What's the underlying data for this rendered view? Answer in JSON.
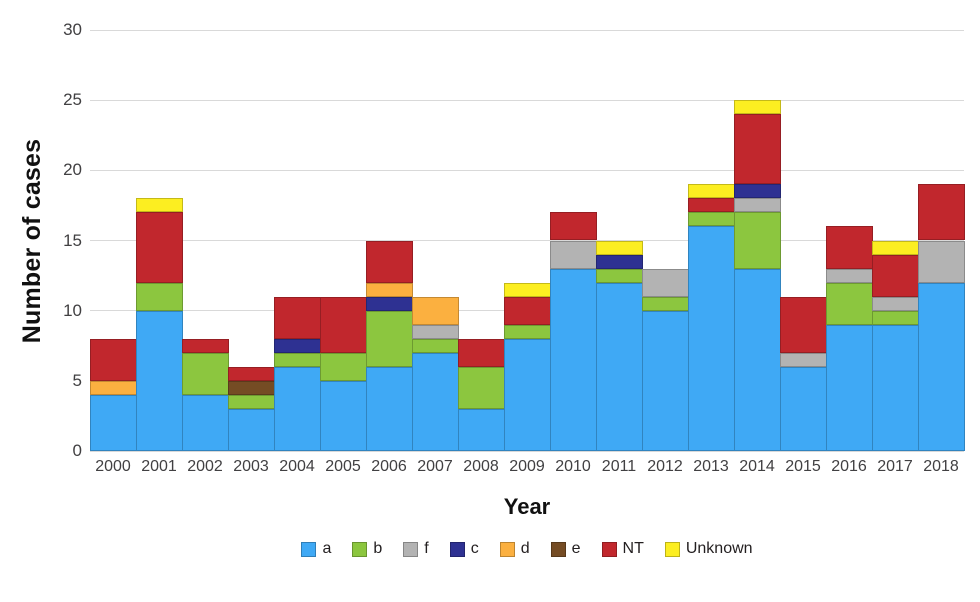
{
  "chart_data": {
    "type": "bar",
    "stacked": true,
    "title": "",
    "xlabel": "Year",
    "ylabel": "Number of cases",
    "categories": [
      "2000",
      "2001",
      "2002",
      "2003",
      "2004",
      "2005",
      "2006",
      "2007",
      "2008",
      "2009",
      "2010",
      "2011",
      "2012",
      "2013",
      "2014",
      "2015",
      "2016",
      "2017",
      "2018"
    ],
    "yticks": [
      0,
      5,
      10,
      15,
      20,
      25,
      30
    ],
    "ylim": [
      0,
      30
    ],
    "grid": true,
    "legend_position": "bottom",
    "series": [
      {
        "name": "a",
        "color": "#3FA9F5",
        "values": [
          4,
          10,
          4,
          3,
          6,
          5,
          6,
          7,
          3,
          8,
          13,
          12,
          10,
          16,
          13,
          6,
          9,
          9,
          12
        ]
      },
      {
        "name": "b",
        "color": "#8CC63F",
        "values": [
          0,
          2,
          3,
          1,
          1,
          2,
          4,
          1,
          3,
          1,
          0,
          1,
          1,
          1,
          4,
          0,
          3,
          1,
          0
        ]
      },
      {
        "name": "f",
        "color": "#B3B3B3",
        "values": [
          0,
          0,
          0,
          0,
          0,
          0,
          0,
          1,
          0,
          0,
          2,
          0,
          2,
          0,
          1,
          1,
          1,
          1,
          3
        ]
      },
      {
        "name": "c",
        "color": "#2E3192",
        "values": [
          0,
          0,
          0,
          0,
          1,
          0,
          1,
          0,
          0,
          0,
          0,
          1,
          0,
          0,
          1,
          0,
          0,
          0,
          0
        ]
      },
      {
        "name": "d",
        "color": "#FBB040",
        "values": [
          1,
          0,
          0,
          0,
          0,
          0,
          1,
          2,
          0,
          0,
          0,
          0,
          0,
          0,
          0,
          0,
          0,
          0,
          0
        ]
      },
      {
        "name": "e",
        "color": "#754C24",
        "values": [
          0,
          0,
          0,
          1,
          0,
          0,
          0,
          0,
          0,
          0,
          0,
          0,
          0,
          0,
          0,
          0,
          0,
          0,
          0
        ]
      },
      {
        "name": "NT",
        "color": "#C1272D",
        "values": [
          3,
          5,
          1,
          1,
          3,
          4,
          3,
          0,
          2,
          2,
          2,
          0,
          0,
          1,
          5,
          4,
          3,
          3,
          4
        ]
      },
      {
        "name": "Unknown",
        "color": "#FCEE21",
        "values": [
          0,
          1,
          0,
          0,
          0,
          0,
          0,
          0,
          0,
          1,
          0,
          1,
          0,
          1,
          1,
          0,
          0,
          1,
          0
        ]
      }
    ],
    "totals": [
      8,
      18,
      8,
      6,
      11,
      11,
      15,
      11,
      8,
      12,
      17,
      15,
      13,
      19,
      25,
      11,
      16,
      15,
      19
    ],
    "colors": {
      "gridline": "#D9D9D9",
      "tick_text": "#414042",
      "axis_title_text": "#111111",
      "background": "#FFFFFF"
    }
  }
}
